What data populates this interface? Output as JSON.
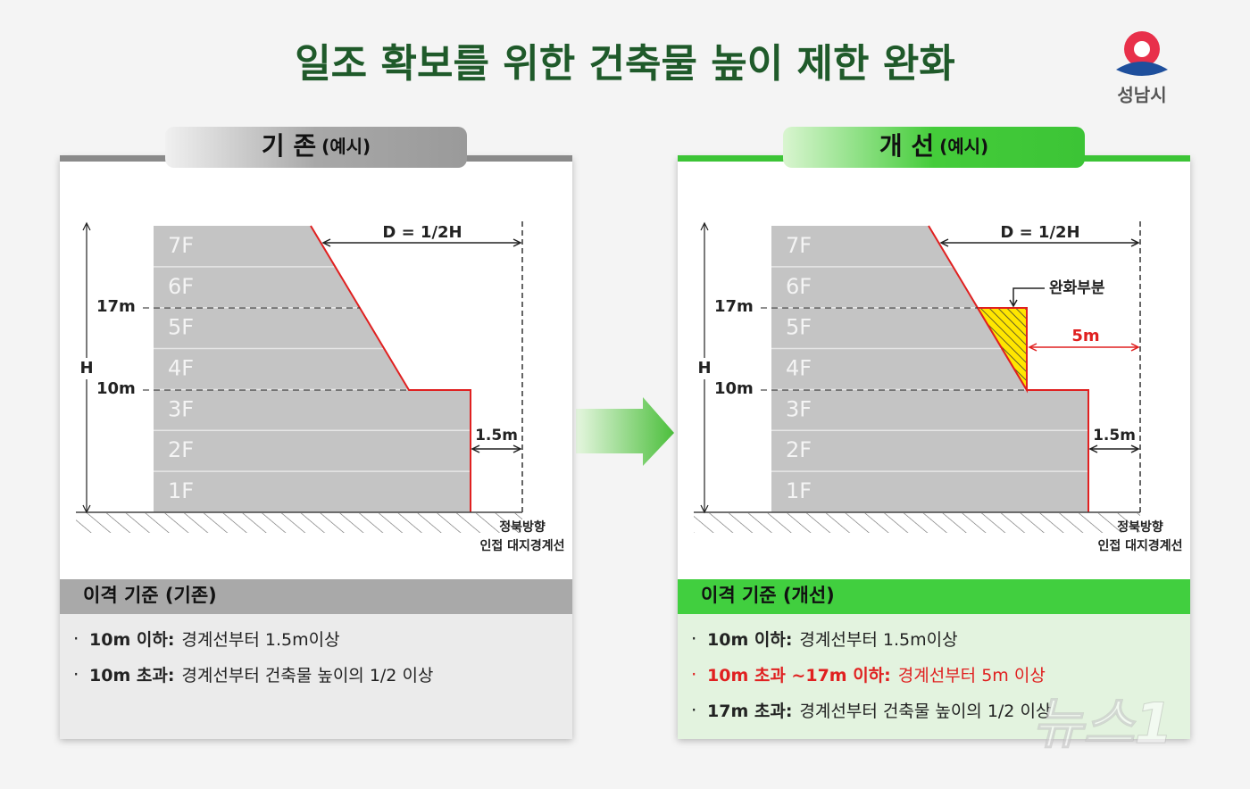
{
  "title": "일조 확보를 위한 건축물 높이 제한 완화",
  "logo": {
    "text": "성남시"
  },
  "watermark": "뉴스1",
  "panels": [
    {
      "tab": "기 존",
      "tab_note": "(예시)",
      "relaxed": false,
      "floors": [
        "1F",
        "2F",
        "3F",
        "4F",
        "5F",
        "6F",
        "7F"
      ],
      "labels": {
        "d": "D = 1/2H",
        "h": "H",
        "level_17": "17m",
        "level_10": "10m",
        "setback": "1.5m",
        "boundary": [
          "정북방향",
          "인접 대지경계선"
        ]
      },
      "criteria_title": "이격 기준 (기존)",
      "criteria": [
        {
          "term": "10m 이하:",
          "desc": "경계선부터 1.5m이상",
          "highlight": false
        },
        {
          "term": "10m 초과:",
          "desc": "경계선부터 건축물 높이의 1/2 이상",
          "highlight": false
        }
      ]
    },
    {
      "tab": "개 선",
      "tab_note": "(예시)",
      "relaxed": true,
      "floors": [
        "1F",
        "2F",
        "3F",
        "4F",
        "5F",
        "6F",
        "7F"
      ],
      "labels": {
        "d": "D = 1/2H",
        "h": "H",
        "level_17": "17m",
        "level_10": "10m",
        "setback": "1.5m",
        "boundary": [
          "정북방향",
          "인접 대지경계선"
        ],
        "relaxed_area": "완화부분",
        "relaxed_setback": "5m"
      },
      "criteria_title": "이격 기준 (개선)",
      "criteria": [
        {
          "term": "10m 이하:",
          "desc": "경계선부터 1.5m이상",
          "highlight": false
        },
        {
          "term": "10m 초과 ~17m 이하:",
          "desc": "경계선부터 5m 이상",
          "highlight": true
        },
        {
          "term": "17m 초과:",
          "desc": "경계선부터 건축물 높이의 1/2 이상",
          "highlight": false
        }
      ]
    }
  ]
}
